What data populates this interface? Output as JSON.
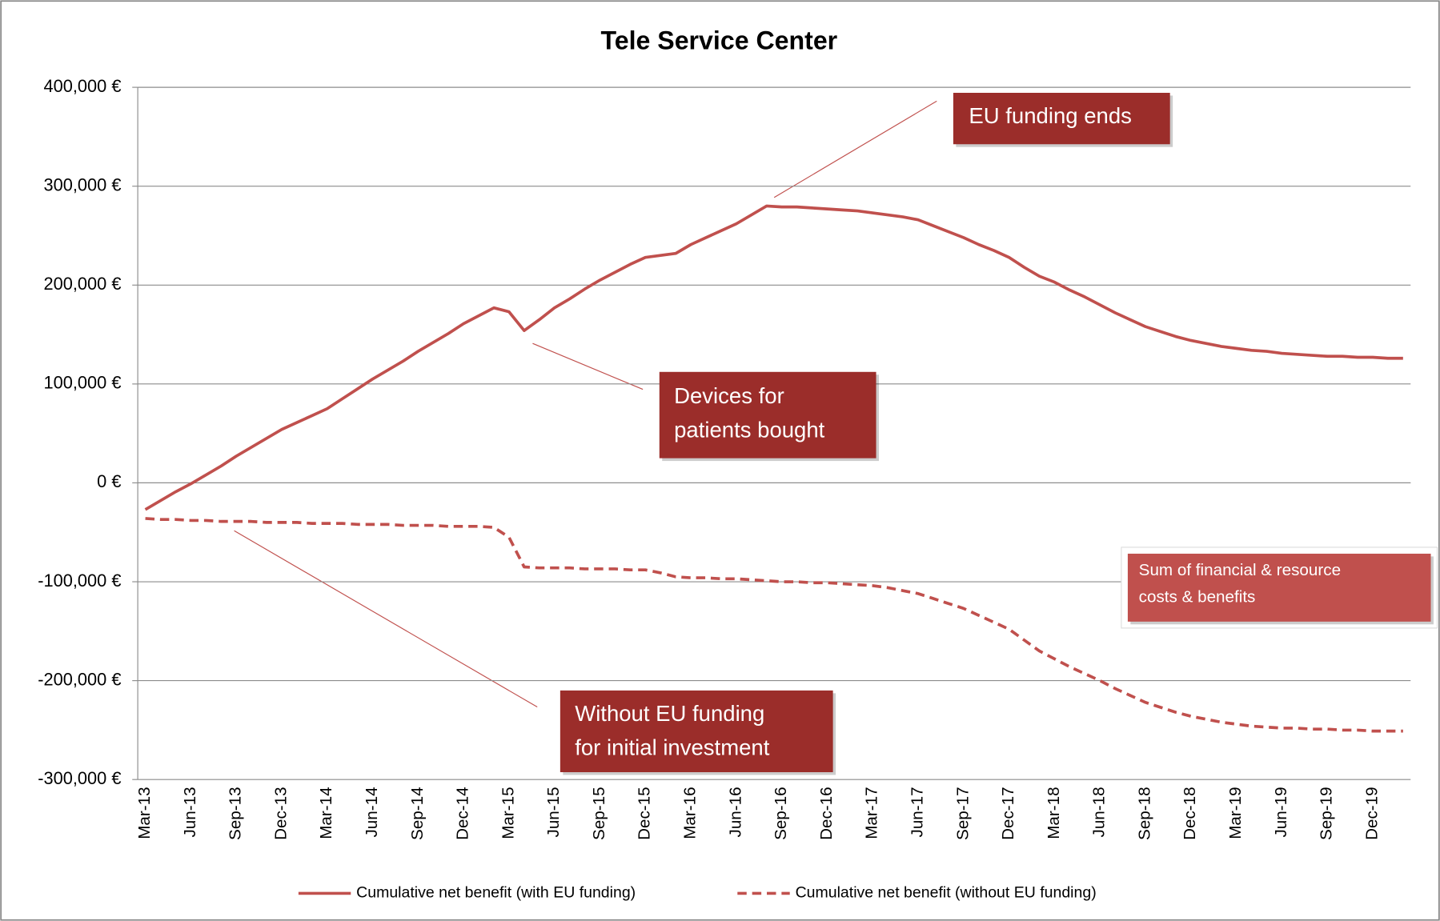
{
  "chart_data": {
    "type": "line",
    "title": "Tele Service Center",
    "categories": [
      "Mar-13",
      null,
      null,
      "Jun-13",
      null,
      null,
      "Sep-13",
      null,
      null,
      "Dec-13",
      null,
      null,
      "Mar-14",
      null,
      null,
      "Jun-14",
      null,
      null,
      "Sep-14",
      null,
      null,
      "Dec-14",
      null,
      null,
      "Mar-15",
      null,
      null,
      "Jun-15",
      null,
      null,
      "Sep-15",
      null,
      null,
      "Dec-15",
      null,
      null,
      "Mar-16",
      null,
      null,
      "Jun-16",
      null,
      null,
      "Sep-16",
      null,
      null,
      "Dec-16",
      null,
      null,
      "Mar-17",
      null,
      null,
      "Jun-17",
      null,
      null,
      "Sep-17",
      null,
      null,
      "Dec-17",
      null,
      null,
      "Mar-18",
      null,
      null,
      "Jun-18",
      null,
      null,
      "Sep-18",
      null,
      null,
      "Dec-18",
      null,
      null,
      "Mar-19",
      null,
      null,
      "Jun-19",
      null,
      null,
      "Sep-19",
      null,
      null,
      "Dec-19",
      null,
      null
    ],
    "series": [
      {
        "name": "Cumulative net benefit (with EU funding)",
        "color": "#c0504d",
        "style": "solid",
        "values": [
          -27000,
          -18000,
          -9000,
          -1000,
          8000,
          17000,
          27000,
          36000,
          45000,
          54000,
          61000,
          68000,
          75000,
          85000,
          95000,
          105000,
          114000,
          123000,
          133000,
          142000,
          151000,
          161000,
          169000,
          177000,
          173000,
          154000,
          165000,
          177000,
          186000,
          196000,
          205000,
          213000,
          221000,
          228000,
          230000,
          232000,
          241000,
          248000,
          255000,
          262000,
          271000,
          280000,
          279000,
          279000,
          278000,
          277000,
          276000,
          275000,
          273000,
          271000,
          269000,
          266000,
          260000,
          254000,
          248000,
          241000,
          235000,
          228000,
          218000,
          209000,
          203000,
          195000,
          188000,
          180000,
          172000,
          165000,
          158000,
          153000,
          148000,
          144000,
          141000,
          138000,
          136000,
          134000,
          133000,
          131000,
          130000,
          129000,
          128000,
          128000,
          127000,
          127000,
          126000,
          126000
        ]
      },
      {
        "name": "Cumulative net benefit (without EU funding)",
        "color": "#c0504d",
        "style": "dashed",
        "values": [
          -36000,
          -37000,
          -37000,
          -38000,
          -38000,
          -39000,
          -39000,
          -39000,
          -40000,
          -40000,
          -40000,
          -41000,
          -41000,
          -41000,
          -42000,
          -42000,
          -42000,
          -43000,
          -43000,
          -43000,
          -44000,
          -44000,
          -44000,
          -45000,
          -55000,
          -85000,
          -86000,
          -86000,
          -86000,
          -87000,
          -87000,
          -87000,
          -88000,
          -88000,
          -91000,
          -95000,
          -96000,
          -96000,
          -97000,
          -97000,
          -98000,
          -99000,
          -100000,
          -100000,
          -101000,
          -101000,
          -102000,
          -103000,
          -104000,
          -106000,
          -109000,
          -112000,
          -117000,
          -122000,
          -127000,
          -134000,
          -141000,
          -148000,
          -159000,
          -170000,
          -178000,
          -186000,
          -193000,
          -200000,
          -208000,
          -215000,
          -222000,
          -227000,
          -232000,
          -236000,
          -239000,
          -242000,
          -244000,
          -246000,
          -247000,
          -248000,
          -248000,
          -249000,
          -249000,
          -250000,
          -250000,
          -251000,
          -251000,
          -251000
        ]
      }
    ],
    "ylim": [
      -300000,
      400000
    ],
    "yticks": [
      {
        "value": -300000,
        "label": "-300,000 €"
      },
      {
        "value": -200000,
        "label": "-200,000 €"
      },
      {
        "value": -100000,
        "label": "-100,000 €"
      },
      {
        "value": 0,
        "label": "0 €"
      },
      {
        "value": 100000,
        "label": "100,000 €"
      },
      {
        "value": 200000,
        "label": "200,000 €"
      },
      {
        "value": 300000,
        "label": "300,000 €"
      },
      {
        "value": 400000,
        "label": "400,000 €"
      }
    ],
    "grid": true,
    "legend": "bottom",
    "annotations": [
      {
        "lines": [
          "EU funding ends"
        ]
      },
      {
        "lines": [
          "Devices for",
          "patients bought"
        ]
      },
      {
        "lines": [
          "Without EU funding",
          "for initial investment"
        ]
      },
      {
        "lines": [
          "Sum of financial & resource",
          "costs & benefits"
        ]
      }
    ]
  }
}
